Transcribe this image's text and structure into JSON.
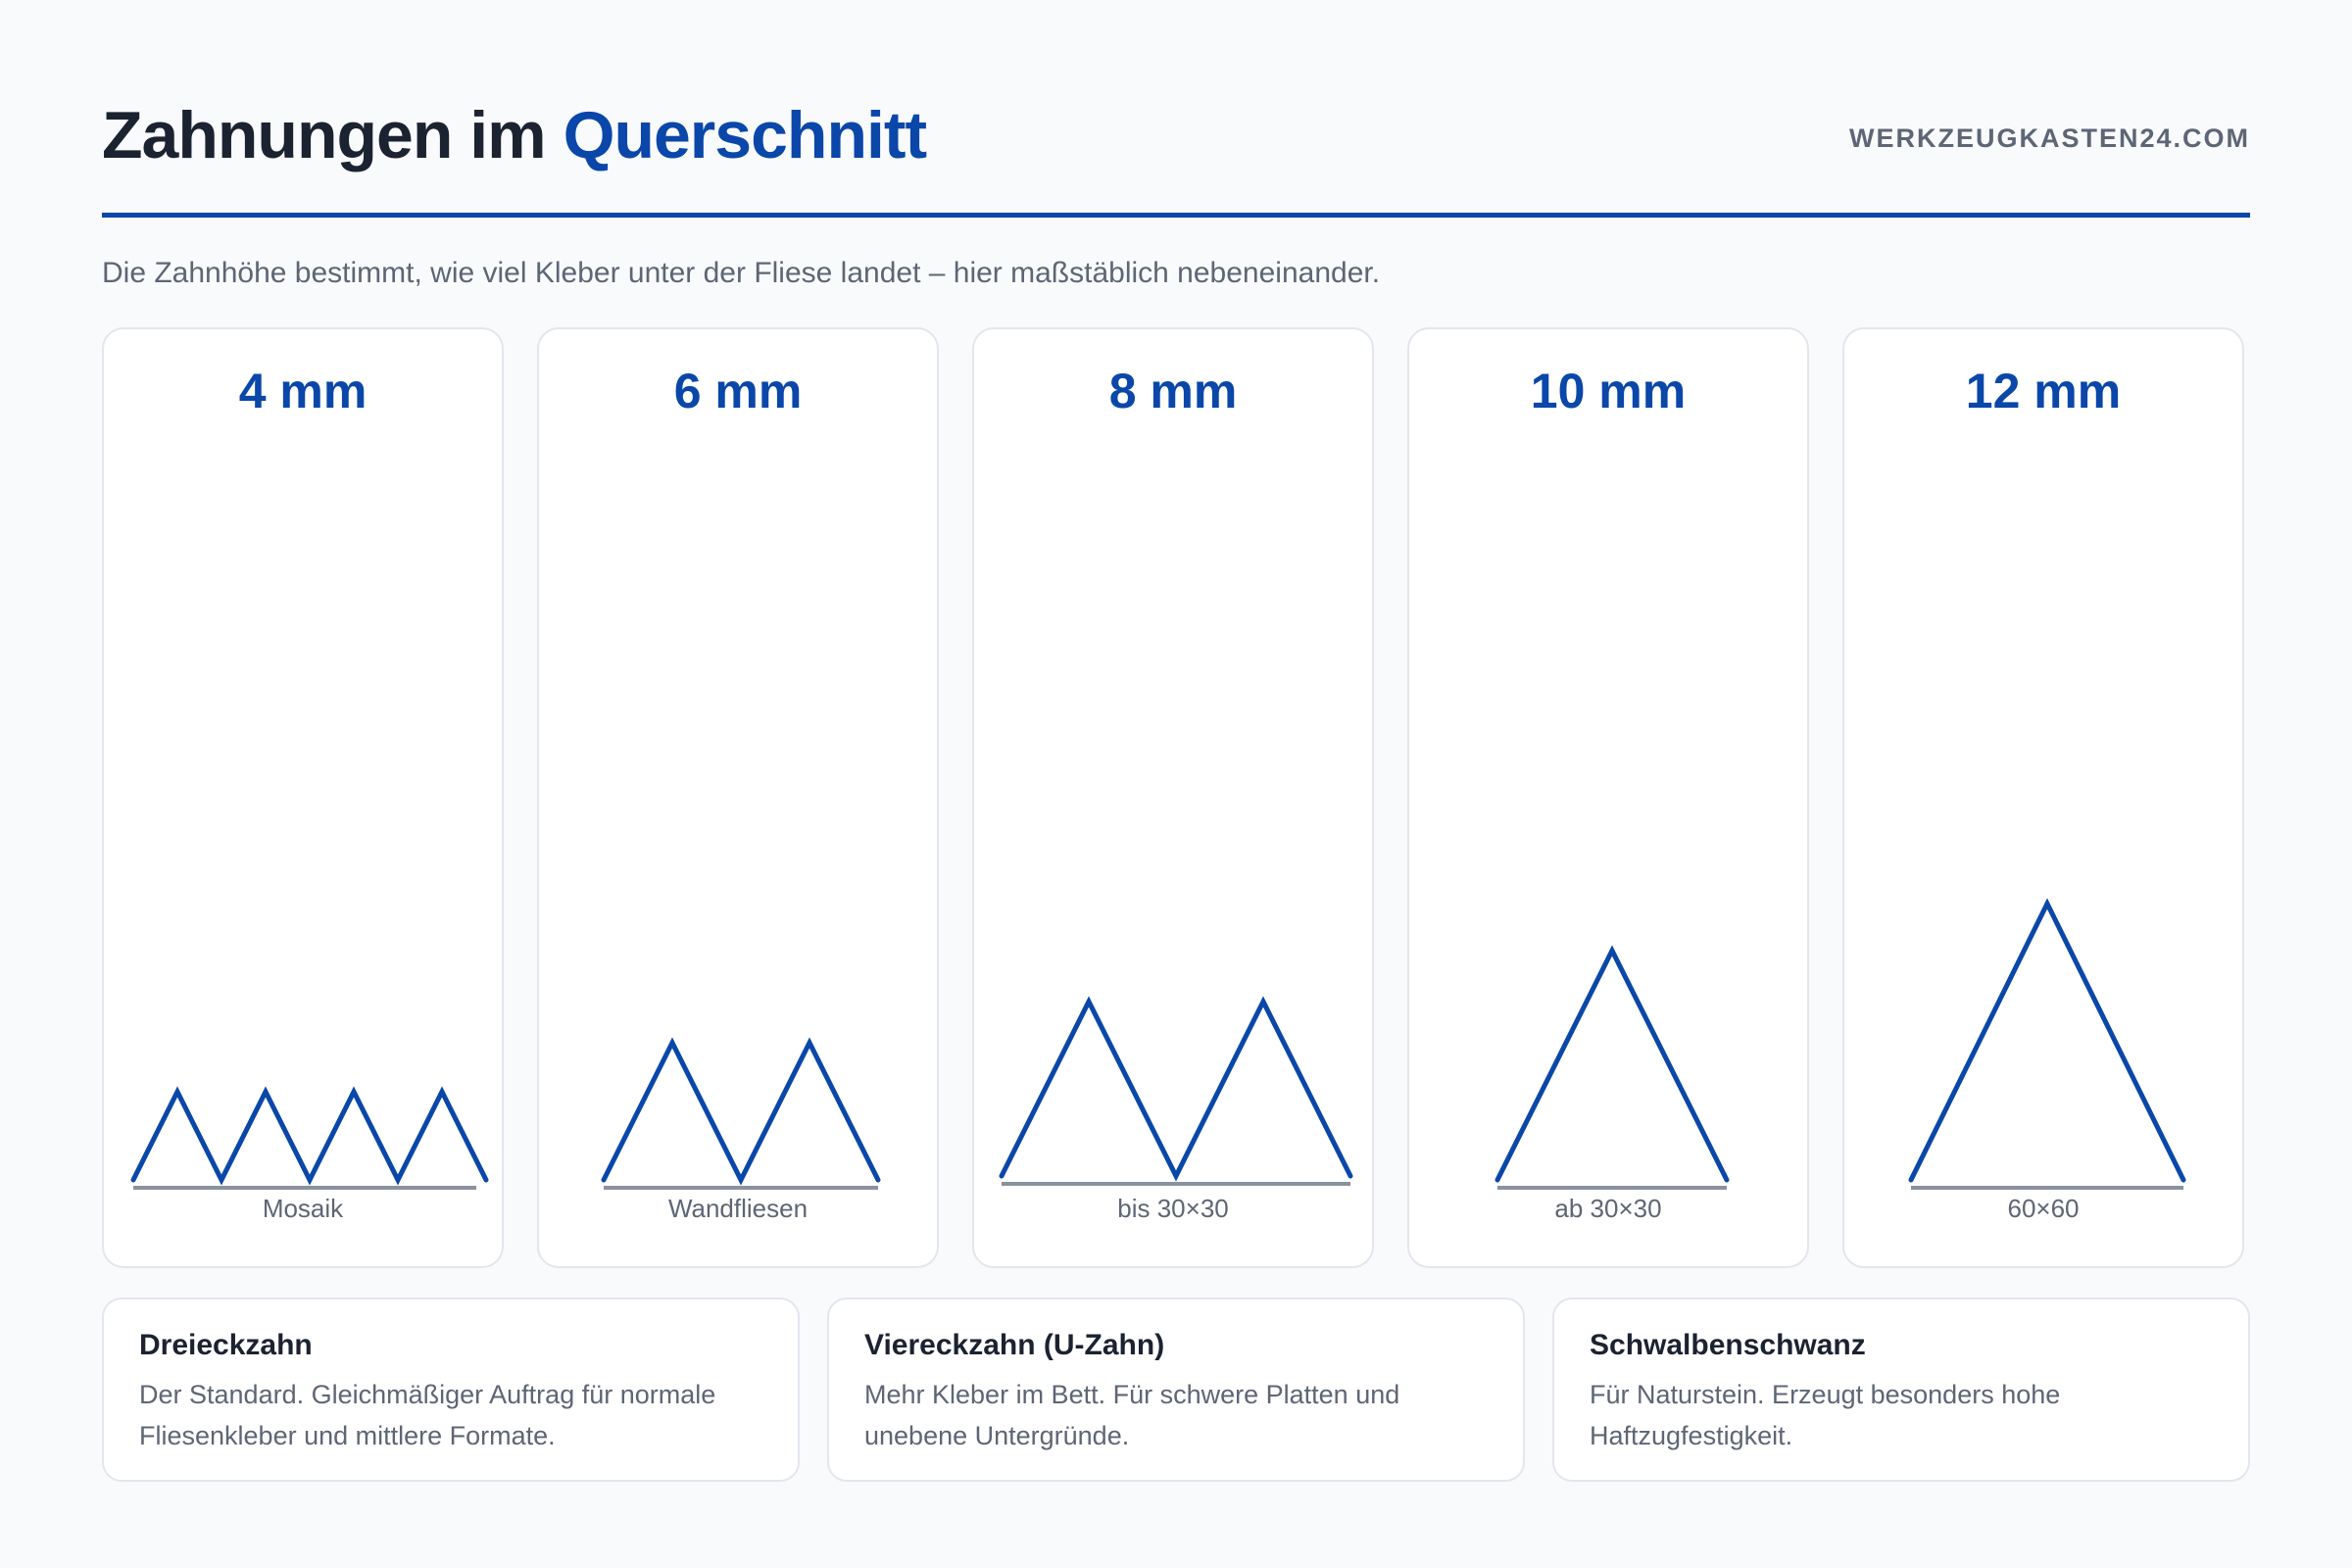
{
  "header": {
    "title_main": "Zahnungen im",
    "title_accent": "Querschnitt",
    "brand": "WERKZEUGKASTEN24.COM",
    "subtitle": "Die Zahnhöhe bestimmt, wie viel Kleber unter der Fliese landet – hier maßstäblich nebeneinander."
  },
  "colors": {
    "accent": "#0a47a9",
    "baseline": "#8a92a0",
    "text_muted": "#5d6675"
  },
  "cards": [
    {
      "title": "4 mm",
      "label": "Mosaik",
      "height_mm": 4,
      "teeth": 4
    },
    {
      "title": "6 mm",
      "label": "Wandfliesen",
      "height_mm": 6,
      "teeth": 2
    },
    {
      "title": "8 mm",
      "label": "bis 30×30",
      "height_mm": 8,
      "teeth": 2
    },
    {
      "title": "10 mm",
      "label": "ab 30×30",
      "height_mm": 10,
      "teeth": 1
    },
    {
      "title": "12 mm",
      "label": "60×60",
      "height_mm": 12,
      "teeth": 1
    }
  ],
  "info": [
    {
      "title": "Dreieckzahn",
      "text": "Der Standard. Gleichmäßiger Auftrag für normale Fliesenkleber und mittlere Formate."
    },
    {
      "title": "Viereckzahn (U-Zahn)",
      "text": "Mehr Kleber im Bett. Für schwere Platten und unebene Untergründe."
    },
    {
      "title": "Schwalbenschwanz",
      "text": "Für Naturstein. Erzeugt besonders hohe Haftzugfestigkeit."
    }
  ]
}
